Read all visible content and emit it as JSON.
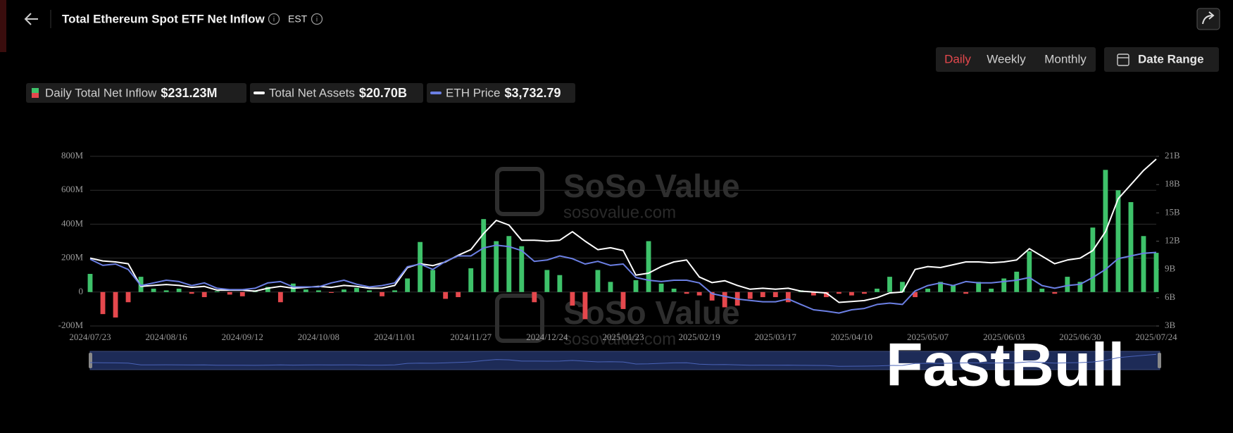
{
  "header": {
    "title": "Total Ethereum Spot ETF Net Inflow",
    "timezone": "EST"
  },
  "controls": {
    "periods": [
      "Daily",
      "Weekly",
      "Monthly"
    ],
    "active": 0,
    "date_range": "Date Range"
  },
  "watermarks": [
    "SoSo Value",
    "sosovalue.com",
    "SoSo Value",
    "sosovalue.com",
    "FastBull"
  ],
  "chart_data": {
    "type": "combo",
    "categories": [
      "2024/07/23",
      null,
      null,
      null,
      null,
      null,
      "2024/08/16",
      null,
      null,
      null,
      null,
      null,
      "2024/09/12",
      null,
      null,
      null,
      null,
      null,
      "2024/10/08",
      null,
      null,
      null,
      null,
      null,
      "2024/11/01",
      null,
      null,
      null,
      null,
      null,
      "2024/11/27",
      null,
      null,
      null,
      null,
      null,
      "2024/12/24",
      null,
      null,
      null,
      null,
      null,
      "2025/01/23",
      null,
      null,
      null,
      null,
      null,
      "2025/02/19",
      null,
      null,
      null,
      null,
      null,
      "2025/03/17",
      null,
      null,
      null,
      null,
      null,
      "2025/04/10",
      null,
      null,
      null,
      null,
      null,
      "2025/05/07",
      null,
      null,
      null,
      null,
      null,
      "2025/06/03",
      null,
      null,
      null,
      null,
      null,
      "2025/06/30",
      null,
      null,
      null,
      null,
      null,
      "2025/07/24"
    ],
    "series": [
      {
        "name": "Daily Total Net Inflow",
        "legend_value": "$231.23M",
        "type": "bar",
        "axis": "y",
        "color": "#3ec26a",
        "negative_color": "#e5484d",
        "values": [
          107,
          -130,
          -150,
          -60,
          90,
          20,
          10,
          20,
          -10,
          -30,
          5,
          -15,
          -25,
          10,
          30,
          -60,
          50,
          15,
          10,
          -5,
          15,
          25,
          10,
          -25,
          10,
          80,
          295,
          130,
          -40,
          -30,
          140,
          430,
          300,
          330,
          270,
          -60,
          130,
          100,
          -80,
          -160,
          130,
          60,
          -100,
          70,
          300,
          50,
          20,
          -10,
          -20,
          -50,
          -90,
          -80,
          -40,
          -30,
          -30,
          -60,
          10,
          -20,
          -30,
          -10,
          -20,
          -10,
          20,
          90,
          60,
          -30,
          20,
          60,
          40,
          -10,
          60,
          20,
          80,
          120,
          240,
          20,
          -10,
          90,
          60,
          380,
          720,
          600,
          530,
          330,
          231.23
        ]
      },
      {
        "name": "Total Net Assets",
        "legend_value": "$20.70B",
        "type": "line",
        "axis": "y2",
        "color": "#ffffff",
        "values": [
          10.2,
          9.9,
          9.8,
          9.6,
          7.2,
          7.3,
          7.4,
          7.3,
          7.1,
          7.2,
          6.8,
          6.8,
          6.8,
          6.7,
          7.0,
          7.2,
          7.0,
          7.1,
          7.2,
          7.1,
          7.3,
          7.2,
          7.0,
          7.0,
          7.3,
          9.2,
          9.6,
          9.4,
          9.8,
          10.5,
          11.1,
          12.8,
          14.2,
          13.7,
          12.1,
          12.1,
          12.0,
          12.1,
          13.0,
          12.0,
          11.1,
          11.3,
          11.0,
          8.4,
          8.6,
          9.3,
          9.8,
          10.0,
          8.2,
          7.6,
          7.8,
          7.3,
          6.9,
          7.0,
          6.9,
          7.0,
          6.7,
          6.6,
          6.5,
          5.5,
          5.6,
          5.7,
          6.0,
          6.5,
          6.6,
          9.0,
          9.3,
          9.2,
          9.5,
          9.8,
          9.8,
          9.7,
          9.8,
          10.0,
          11.2,
          10.4,
          9.6,
          10.0,
          10.2,
          11.0,
          13.0,
          16.5,
          18.0,
          19.5,
          20.7
        ]
      },
      {
        "name": "ETH Price",
        "legend_value": "$3,732.79",
        "type": "line",
        "axis": "y3",
        "color": "#6b7fe3",
        "values": [
          3480,
          3250,
          3300,
          3100,
          2500,
          2600,
          2700,
          2650,
          2500,
          2600,
          2400,
          2350,
          2350,
          2400,
          2600,
          2650,
          2450,
          2450,
          2450,
          2600,
          2700,
          2550,
          2450,
          2500,
          2600,
          3200,
          3300,
          3100,
          3400,
          3600,
          3600,
          3900,
          4000,
          3950,
          3800,
          3400,
          3450,
          3600,
          3500,
          3300,
          3400,
          3250,
          3300,
          2800,
          2700,
          2650,
          2700,
          2700,
          2600,
          2200,
          2100,
          2000,
          1950,
          1900,
          1900,
          2000,
          1800,
          1600,
          1550,
          1480,
          1600,
          1650,
          1800,
          1850,
          1800,
          2300,
          2500,
          2600,
          2500,
          2650,
          2600,
          2600,
          2650,
          2700,
          2800,
          2500,
          2400,
          2500,
          2550,
          2800,
          3100,
          3500,
          3600,
          3700,
          3732.79
        ]
      }
    ],
    "ylim": [
      -200,
      800
    ],
    "yticks": [
      {
        "value": -200,
        "label": "-200M"
      },
      {
        "value": 0,
        "label": "0"
      },
      {
        "value": 200,
        "label": "200M"
      },
      {
        "value": 400,
        "label": "400M"
      },
      {
        "value": 600,
        "label": "600M"
      },
      {
        "value": 800,
        "label": "800M"
      }
    ],
    "y2lim": [
      3,
      21
    ],
    "y2ticks": [
      {
        "value": 3,
        "label": "3B"
      },
      {
        "value": 6,
        "label": "6B"
      },
      {
        "value": 9,
        "label": "9B"
      },
      {
        "value": 12,
        "label": "12B"
      },
      {
        "value": 15,
        "label": "15B"
      },
      {
        "value": 18,
        "label": "18B"
      },
      {
        "value": 21,
        "label": "21B"
      }
    ],
    "y3lim": [
      1000,
      7300
    ],
    "grid": true
  }
}
